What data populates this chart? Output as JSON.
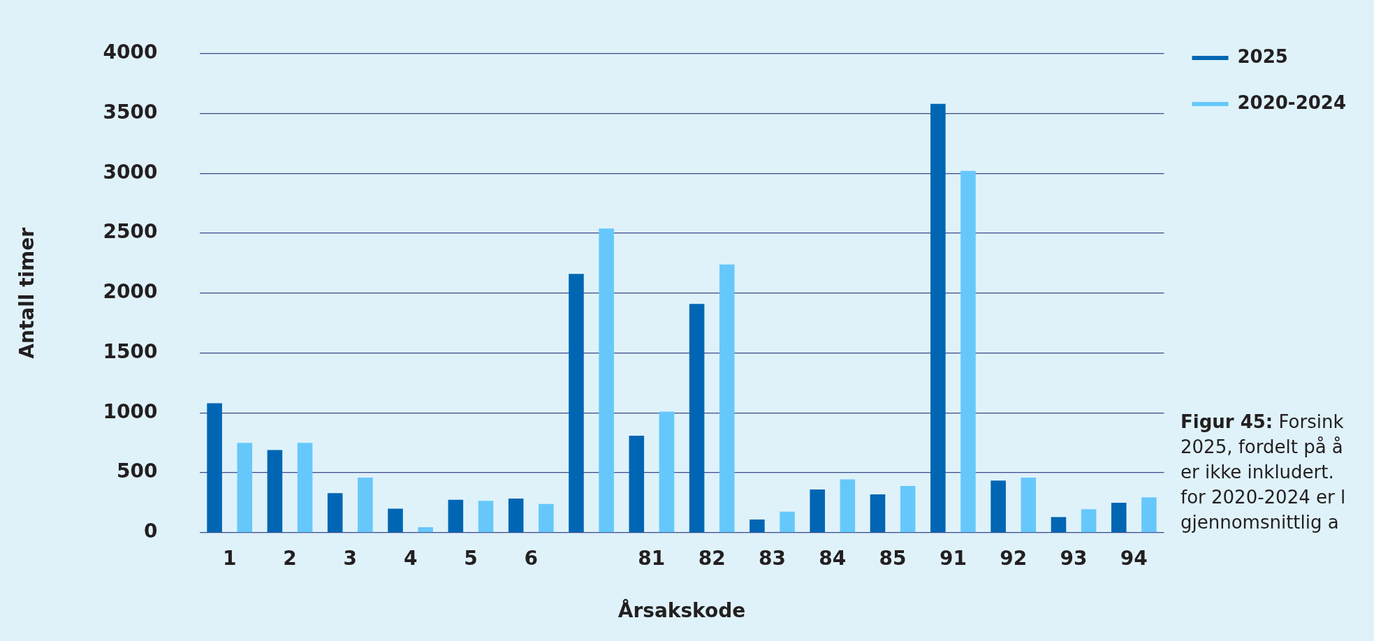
{
  "chart_data": {
    "type": "bar",
    "categories": [
      "1",
      "2",
      "3",
      "4",
      "5",
      "6",
      null,
      "81",
      "82",
      "83",
      "84",
      "85",
      "91",
      "92",
      "93",
      "94"
    ],
    "series": [
      {
        "name": "2025",
        "color": "#0066b3",
        "values": [
          1080,
          690,
          330,
          200,
          275,
          285,
          2160,
          810,
          1910,
          110,
          360,
          320,
          3580,
          435,
          130,
          250
        ]
      },
      {
        "name": "2020-2024",
        "color": "#66c8fa",
        "values": [
          750,
          750,
          460,
          45,
          265,
          240,
          2540,
          1010,
          2240,
          175,
          445,
          390,
          3020,
          460,
          195,
          295
        ]
      }
    ],
    "xlabel": "Årsakskode",
    "ylabel": "Antall timer",
    "ylim": [
      0,
      4000
    ],
    "yticks": [
      0,
      500,
      1000,
      1500,
      2000,
      2500,
      3000,
      3500,
      4000
    ],
    "grid": "y",
    "legend": "top right",
    "annotations": [
      "Figur 45: Forsink",
      "2025, fordelt på å",
      "er ikke inkludert.",
      "for 2020-2024 er l",
      "gjennomsnittlig a"
    ]
  }
}
